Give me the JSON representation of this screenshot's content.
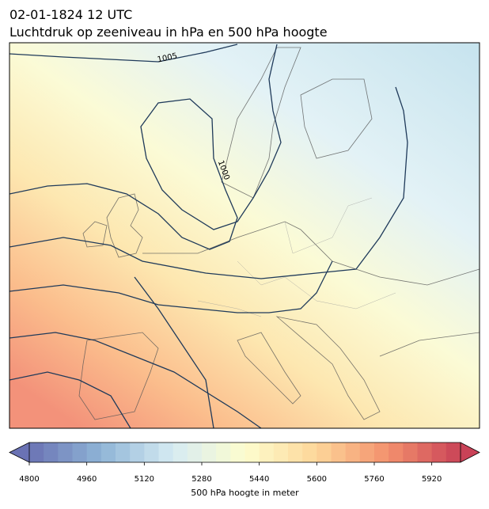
{
  "header": {
    "title": "02-01-1824 12 UTC",
    "subtitle": "Luchtdruk op zeeniveau in hPa en 500 hPa hoogte"
  },
  "map": {
    "contour_labels": [
      "1005",
      "1000"
    ]
  },
  "colorbar": {
    "label": "500 hPa hoogte in meter",
    "lim": [
      4800,
      6000
    ],
    "step": 40,
    "ticks": [
      4800,
      4960,
      5120,
      5280,
      5440,
      5600,
      5760,
      5920
    ],
    "colors": [
      "#6a72b4",
      "#8fb5d6",
      "#d6ebf3",
      "#fdfdce",
      "#fdd699",
      "#f3906d",
      "#c94257"
    ]
  }
}
